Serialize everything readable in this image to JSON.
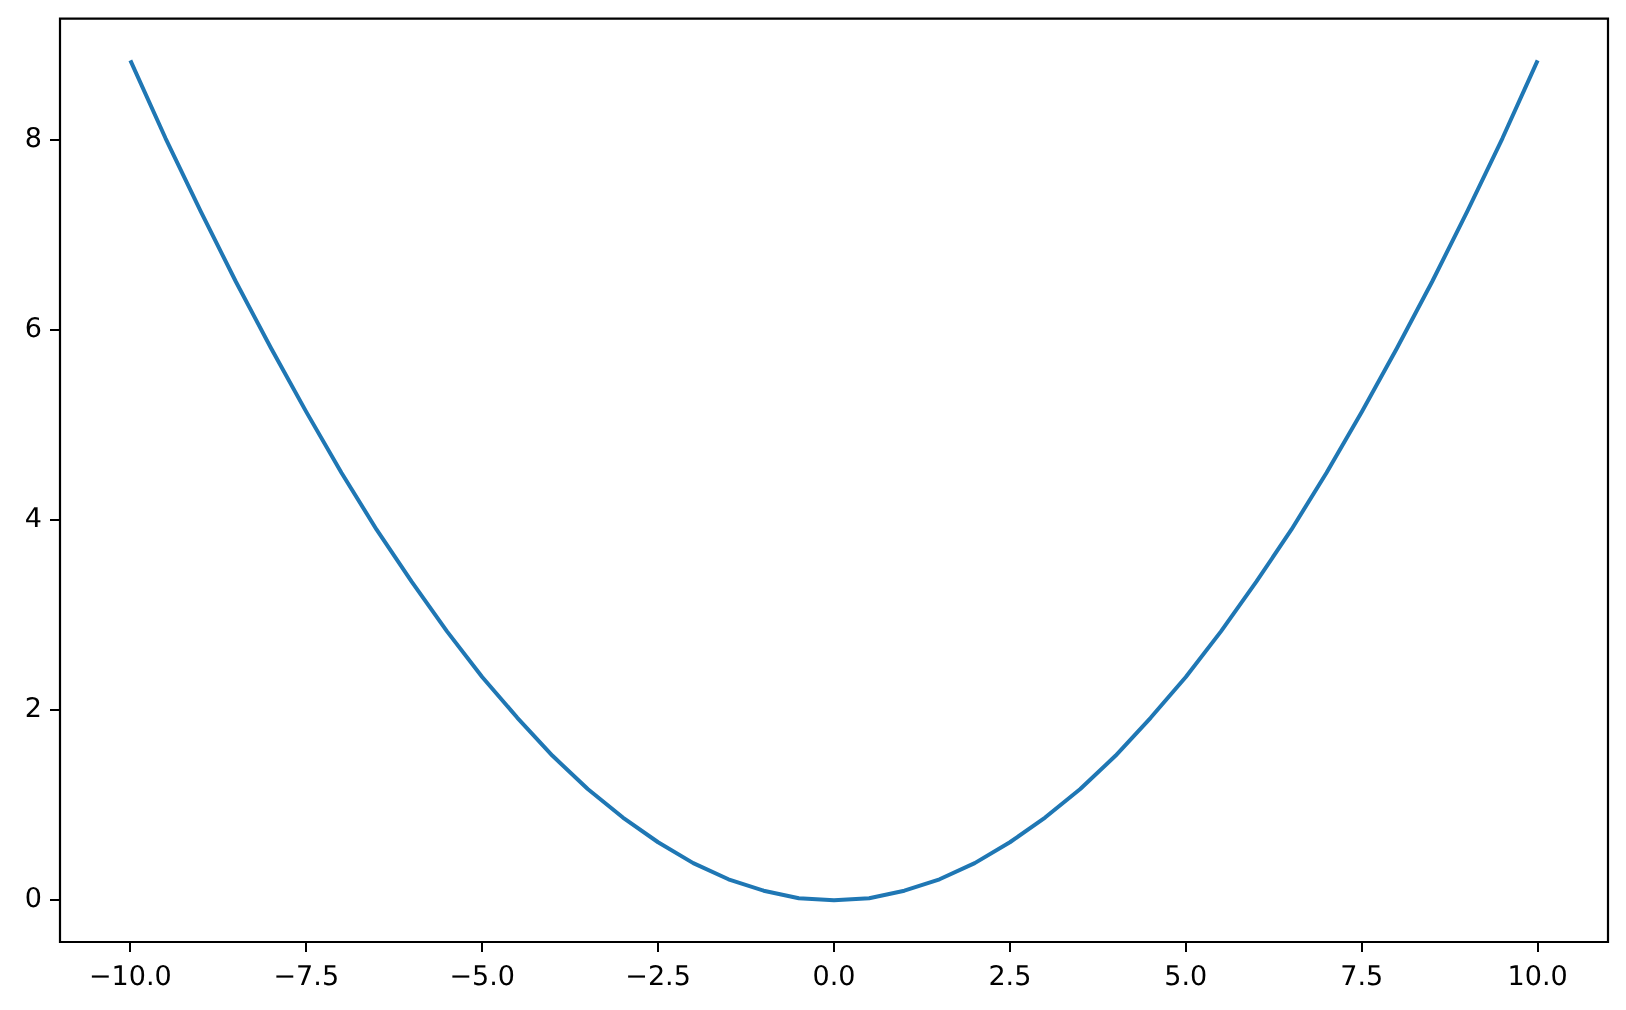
{
  "chart_data": {
    "type": "line",
    "x": [
      -10,
      -9.5,
      -9,
      -8.5,
      -8,
      -7.5,
      -7,
      -6.5,
      -6,
      -5.5,
      -5,
      -4.5,
      -4,
      -3.5,
      -3,
      -2.5,
      -2,
      -1.5,
      -1,
      -0.5,
      0,
      0.5,
      1,
      1.5,
      2,
      2.5,
      3,
      3.5,
      4,
      4.5,
      5,
      5.5,
      6,
      6.5,
      7,
      7.5,
      8,
      8.5,
      9,
      9.5,
      10
    ],
    "values": [
      8.84,
      8.02,
      7.25,
      6.51,
      5.81,
      5.14,
      4.5,
      3.9,
      3.35,
      2.83,
      2.35,
      1.92,
      1.52,
      1.17,
      0.87,
      0.61,
      0.39,
      0.22,
      0.1,
      0.02,
      0,
      0.02,
      0.1,
      0.22,
      0.39,
      0.61,
      0.87,
      1.17,
      1.52,
      1.92,
      2.35,
      2.83,
      3.35,
      3.9,
      4.5,
      5.14,
      5.81,
      6.51,
      7.25,
      8.02,
      8.84
    ],
    "color": "#1f77b4",
    "xlim": [
      -11,
      11
    ],
    "ylim": [
      -0.44,
      9.28
    ],
    "xticks": [
      {
        "value": -10,
        "label": "−10.0"
      },
      {
        "value": -7.5,
        "label": "−7.5"
      },
      {
        "value": -5,
        "label": "−5.0"
      },
      {
        "value": -2.5,
        "label": "−2.5"
      },
      {
        "value": 0,
        "label": "0.0"
      },
      {
        "value": 2.5,
        "label": "2.5"
      },
      {
        "value": 5,
        "label": "5.0"
      },
      {
        "value": 7.5,
        "label": "7.5"
      },
      {
        "value": 10,
        "label": "10.0"
      }
    ],
    "yticks": [
      0,
      2,
      4,
      6,
      8
    ],
    "marker": "none",
    "line_style": "solid"
  }
}
